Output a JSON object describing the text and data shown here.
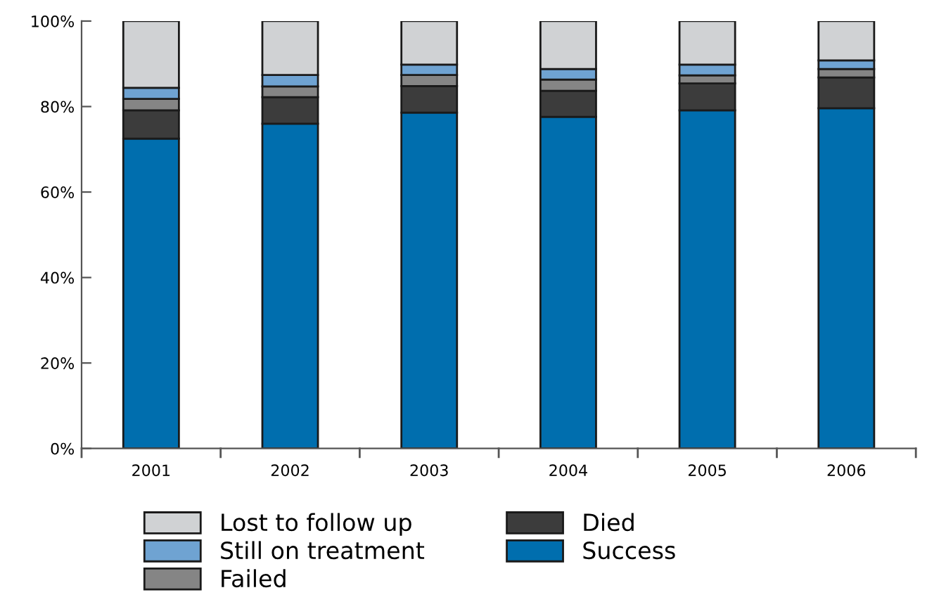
{
  "chart_data": {
    "type": "bar",
    "stacked": true,
    "categories": [
      "2001",
      "2002",
      "2003",
      "2004",
      "2005",
      "2006"
    ],
    "series": [
      {
        "name": "Success",
        "color": "#006eae",
        "values": [
          72.5,
          76.0,
          78.6,
          77.6,
          79.1,
          79.6
        ]
      },
      {
        "name": "Died",
        "color": "#3c3c3c",
        "values": [
          6.6,
          6.2,
          6.2,
          6.1,
          6.3,
          7.2
        ]
      },
      {
        "name": "Failed",
        "color": "#858585",
        "values": [
          2.7,
          2.5,
          2.6,
          2.6,
          1.9,
          2.0
        ]
      },
      {
        "name": "Still on treatment",
        "color": "#6fa3d2",
        "values": [
          2.6,
          2.7,
          2.4,
          2.5,
          2.5,
          2.0
        ]
      },
      {
        "name": "Lost to follow up",
        "color": "#d0d2d4",
        "values": [
          15.6,
          12.6,
          10.2,
          11.2,
          10.2,
          9.2
        ]
      }
    ],
    "ylim": [
      0,
      100
    ],
    "yticks": [
      {
        "value": 0,
        "label": "0%"
      },
      {
        "value": 20,
        "label": "20%"
      },
      {
        "value": 40,
        "label": "40%"
      },
      {
        "value": 60,
        "label": "60%"
      },
      {
        "value": 80,
        "label": "80%"
      },
      {
        "value": 100,
        "label": "100%"
      }
    ],
    "grid": false,
    "legend": "bottom"
  }
}
